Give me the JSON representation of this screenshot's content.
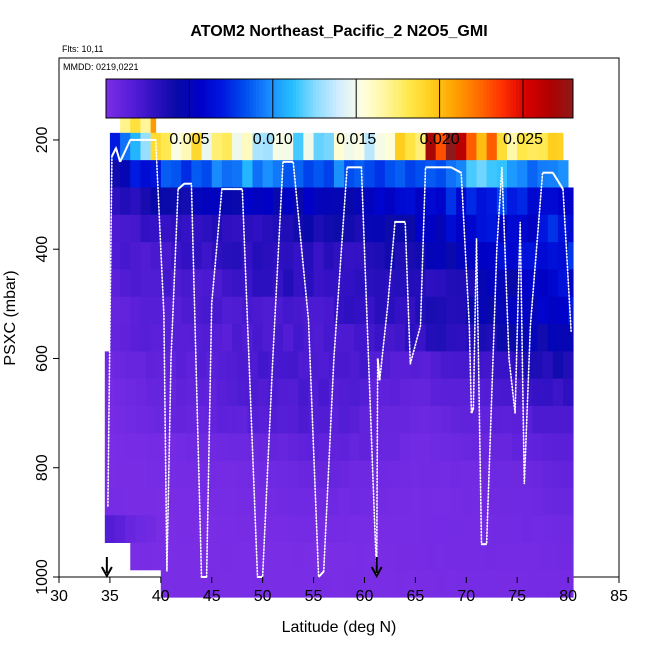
{
  "chart_data": {
    "type": "heatmap",
    "title": "ATOM2 Northeast_Pacific_2 N2O5_GMI",
    "annotations": {
      "flights": "Flts: 10,11",
      "dates": "MMDD: 0219,0221"
    },
    "xlabel": "Latitude (deg N)",
    "ylabel": "PSXC (mbar)",
    "xlim": [
      30,
      85
    ],
    "ylim": [
      1000,
      50
    ],
    "x_ticks": [
      "30",
      "35",
      "40",
      "45",
      "50",
      "55",
      "60",
      "65",
      "70",
      "75",
      "80",
      "85"
    ],
    "y_ticks": [
      "200",
      "400",
      "600",
      "800",
      "1000"
    ],
    "colorbar": {
      "range": [
        0,
        0.028
      ],
      "tick_values": [
        0.005,
        0.01,
        0.015,
        0.02,
        0.025
      ],
      "tick_labels": [
        "0.005",
        "0.010",
        "0.015",
        "0.020",
        "0.025"
      ],
      "colors": [
        "#7b2ee6",
        "#5a1fd9",
        "#3311c4",
        "#0a0aa8",
        "#0000c8",
        "#0018e0",
        "#0050f0",
        "#1a8cff",
        "#26c0ff",
        "#8cdcff",
        "#d4eeff",
        "#ffffe0",
        "#fff59a",
        "#ffe84a",
        "#ffcc1a",
        "#ff9e00",
        "#ff6a00",
        "#ff2e00",
        "#d60000",
        "#b00000",
        "#8c1a1a"
      ]
    },
    "pressure_levels": [
      162,
      212,
      262,
      312,
      362,
      412,
      462,
      512,
      562,
      612,
      662,
      712,
      762,
      812,
      862,
      912,
      962,
      1012
    ],
    "lat_extent": [
      34.5,
      80.5
    ],
    "lat_step": 1,
    "level_coverage": [
      {
        "p": 162,
        "lat_min": 36,
        "lat_max": 39.5
      },
      {
        "p": 212,
        "lat_min": 35,
        "lat_max": 79.5
      },
      {
        "p": 262,
        "lat_min": 35,
        "lat_max": 80
      },
      {
        "p": 312,
        "lat_min": 35,
        "lat_max": 80.5
      },
      {
        "p": 362,
        "lat_min": 35,
        "lat_max": 80.5
      },
      {
        "p": 412,
        "lat_min": 35,
        "lat_max": 80.5
      },
      {
        "p": 462,
        "lat_min": 35,
        "lat_max": 80.5
      },
      {
        "p": 512,
        "lat_min": 35,
        "lat_max": 80.5
      },
      {
        "p": 562,
        "lat_min": 35,
        "lat_max": 80.5
      },
      {
        "p": 612,
        "lat_min": 34.5,
        "lat_max": 80.5
      },
      {
        "p": 662,
        "lat_min": 34.5,
        "lat_max": 80.5
      },
      {
        "p": 712,
        "lat_min": 34.5,
        "lat_max": 80.5
      },
      {
        "p": 762,
        "lat_min": 34.5,
        "lat_max": 80.5
      },
      {
        "p": 812,
        "lat_min": 34.5,
        "lat_max": 80.5
      },
      {
        "p": 862,
        "lat_min": 34.5,
        "lat_max": 80.5
      },
      {
        "p": 912,
        "lat_min": 34.5,
        "lat_max": 80.5
      },
      {
        "p": 962,
        "lat_min": 37,
        "lat_max": 80.5
      },
      {
        "p": 1012,
        "lat_min": 40,
        "lat_max": 80.5
      }
    ],
    "level_profiles": [
      {
        "p": 162,
        "lats": [
          36,
          37,
          38,
          39
        ],
        "values": [
          0.01,
          0.021,
          0.02,
          0.019
        ]
      },
      {
        "p": 212,
        "lats": [
          35,
          40,
          45,
          50,
          55,
          60,
          65,
          67,
          69,
          71,
          73,
          75,
          77,
          79
        ],
        "values": [
          0.006,
          0.018,
          0.017,
          0.014,
          0.013,
          0.015,
          0.018,
          0.026,
          0.025,
          0.024,
          0.022,
          0.017,
          0.02,
          0.018
        ]
      },
      {
        "p": 262,
        "lats": [
          35,
          38,
          42,
          46,
          50,
          54,
          58,
          62,
          66,
          70,
          72,
          74,
          76,
          80
        ],
        "values": [
          0.004,
          0.007,
          0.008,
          0.009,
          0.01,
          0.009,
          0.009,
          0.008,
          0.009,
          0.01,
          0.011,
          0.012,
          0.01,
          0.009
        ]
      },
      {
        "p": 312,
        "lats": [
          35,
          40,
          45,
          50,
          55,
          60,
          65,
          70,
          75,
          80
        ],
        "values": [
          0.003,
          0.004,
          0.005,
          0.005,
          0.005,
          0.005,
          0.006,
          0.007,
          0.007,
          0.006
        ]
      },
      {
        "p": 362,
        "lats": [
          35,
          40,
          45,
          50,
          55,
          60,
          65,
          70,
          75,
          80
        ],
        "values": [
          0.002,
          0.003,
          0.003,
          0.003,
          0.004,
          0.004,
          0.005,
          0.006,
          0.006,
          0.007
        ]
      },
      {
        "p": 412,
        "lats": [
          35,
          40,
          45,
          50,
          55,
          60,
          65,
          70,
          75,
          80
        ],
        "values": [
          0.002,
          0.002,
          0.003,
          0.003,
          0.003,
          0.003,
          0.004,
          0.005,
          0.006,
          0.007
        ]
      },
      {
        "p": 462,
        "lats": [
          35,
          40,
          45,
          50,
          55,
          60,
          65,
          70,
          75,
          80
        ],
        "values": [
          0.0015,
          0.002,
          0.002,
          0.003,
          0.003,
          0.003,
          0.003,
          0.004,
          0.005,
          0.006
        ]
      },
      {
        "p": 512,
        "lats": [
          35,
          40,
          45,
          50,
          55,
          60,
          65,
          70,
          75,
          80
        ],
        "values": [
          0.001,
          0.0015,
          0.002,
          0.002,
          0.002,
          0.003,
          0.003,
          0.004,
          0.005,
          0.006
        ]
      },
      {
        "p": 562,
        "lats": [
          35,
          40,
          45,
          50,
          55,
          60,
          65,
          70,
          75,
          80
        ],
        "values": [
          0.001,
          0.0015,
          0.0015,
          0.002,
          0.002,
          0.002,
          0.003,
          0.003,
          0.004,
          0.005
        ]
      },
      {
        "p": 612,
        "lats": [
          35,
          40,
          45,
          50,
          55,
          60,
          65,
          70,
          75,
          80
        ],
        "values": [
          0.0005,
          0.0012,
          0.0015,
          0.002,
          0.002,
          0.002,
          0.0015,
          0.002,
          0.003,
          0.004
        ]
      },
      {
        "p": 662,
        "lats": [
          35,
          40,
          45,
          50,
          55,
          60,
          65,
          70,
          75,
          80
        ],
        "values": [
          0.0003,
          0.001,
          0.0012,
          0.0018,
          0.002,
          0.0015,
          0.001,
          0.0015,
          0.002,
          0.003
        ]
      },
      {
        "p": 712,
        "lats": [
          35,
          40,
          45,
          50,
          55,
          60,
          65,
          70,
          75,
          80
        ],
        "values": [
          0.0002,
          0.0008,
          0.001,
          0.0015,
          0.0018,
          0.0012,
          0.0006,
          0.001,
          0.0015,
          0.002
        ]
      },
      {
        "p": 762,
        "lats": [
          35,
          40,
          45,
          50,
          55,
          60,
          65,
          70,
          75,
          80
        ],
        "values": [
          0.0001,
          0.0003,
          0.0005,
          0.0008,
          0.0012,
          0.001,
          0.0004,
          0.0006,
          0.001,
          0.0015
        ]
      },
      {
        "p": 812,
        "lats": [
          35,
          40,
          45,
          50,
          55,
          60,
          65,
          70,
          75,
          80
        ],
        "values": [
          0.0001,
          0.0002,
          0.0003,
          0.0004,
          0.0008,
          0.0006,
          0.0003,
          0.0004,
          0.0006,
          0.001
        ]
      },
      {
        "p": 862,
        "lats": [
          35,
          40,
          45,
          50,
          55,
          60,
          65,
          70,
          75,
          80
        ],
        "values": [
          0.0002,
          0.0001,
          0.0002,
          0.0003,
          0.0005,
          0.0004,
          0.0002,
          0.0003,
          0.0005,
          0.0008
        ]
      },
      {
        "p": 912,
        "lats": [
          35,
          40,
          45,
          50,
          55,
          60,
          65,
          70,
          75,
          80
        ],
        "values": [
          0.0015,
          0.0001,
          0.0001,
          0.0002,
          0.0003,
          0.0002,
          0.0002,
          0.0003,
          0.0004,
          0.0005
        ]
      },
      {
        "p": 962,
        "lats": [
          37,
          40,
          45,
          50,
          55,
          60,
          65,
          70,
          75,
          80
        ],
        "values": [
          0.0001,
          0.0001,
          0.0001,
          0.0001,
          0.0001,
          0.0001,
          0.0002,
          0.0003,
          0.0003,
          0.0004
        ]
      },
      {
        "p": 1012,
        "lats": [
          40,
          45,
          50,
          55,
          60,
          65,
          70,
          75,
          80
        ],
        "values": [
          0.0001,
          0.0001,
          0.0001,
          0.0001,
          0.0001,
          0.0001,
          0.0002,
          0.0002,
          0.0003
        ]
      }
    ],
    "flight_track": {
      "color": "#ffffff",
      "lat": [
        34.8,
        35.2,
        35.6,
        36,
        36.5,
        37,
        37.5,
        38,
        39.5,
        40.3,
        40.6,
        41,
        41.7,
        42.3,
        43,
        44,
        44.5,
        45,
        46,
        47,
        48,
        49.5,
        50,
        51,
        52,
        53,
        54.5,
        55.5,
        56,
        57,
        58.3,
        59.7,
        61,
        61.2,
        61.3,
        61.5,
        62.3,
        63,
        64,
        64.5,
        65.5,
        66,
        67,
        68.5,
        69.5,
        70.3,
        70.5,
        70.7,
        71,
        71.5,
        72,
        73,
        73.5,
        74.2,
        74.8,
        75.3,
        75.7,
        76.3,
        77.5,
        78.5,
        79.5,
        80.3
      ],
      "p": [
        870,
        230,
        215,
        240,
        220,
        200,
        200,
        200,
        200,
        520,
        990,
        600,
        290,
        280,
        280,
        1000,
        1000,
        500,
        290,
        290,
        290,
        1000,
        1000,
        600,
        240,
        240,
        530,
        1000,
        990,
        600,
        250,
        250,
        900,
        995,
        600,
        640,
        500,
        350,
        350,
        610,
        540,
        250,
        250,
        250,
        260,
        540,
        700,
        690,
        380,
        940,
        940,
        400,
        250,
        600,
        700,
        350,
        830,
        540,
        260,
        260,
        290,
        550
      ]
    },
    "markers": [
      {
        "lat": 34.7,
        "label": "arrow"
      },
      {
        "lat": 61.2,
        "label": "arrow"
      }
    ]
  }
}
